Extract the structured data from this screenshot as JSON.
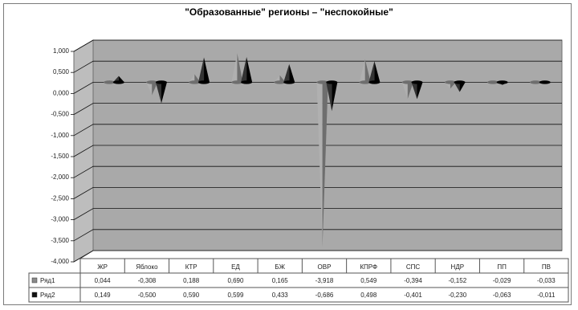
{
  "chart_data": {
    "type": "bar",
    "title": "\"Образованные\" регионы – \"неспокойные\"",
    "categories": [
      "ЖР",
      "Яблоко",
      "КТР",
      "ЕД",
      "БЖ",
      "ОВР",
      "КПРФ",
      "СПС",
      "НДР",
      "ПП",
      "ПВ"
    ],
    "series": [
      {
        "name": "Ряд1",
        "color": "#8a8a8a",
        "values": [
          0.044,
          -0.308,
          0.188,
          0.69,
          0.165,
          -3.918,
          0.549,
          -0.394,
          -0.152,
          -0.029,
          -0.033
        ],
        "labels": [
          "0,044",
          "-0,308",
          "0,188",
          "0,690",
          "0,165",
          "-3,918",
          "0,549",
          "-0,394",
          "-0,152",
          "-0,029",
          "-0,033"
        ]
      },
      {
        "name": "Ряд2",
        "color": "#111111",
        "values": [
          0.149,
          -0.5,
          0.59,
          0.599,
          0.433,
          -0.686,
          0.498,
          -0.401,
          -0.23,
          -0.063,
          -0.011
        ],
        "labels": [
          "0,149",
          "-0,500",
          "0,590",
          "0,599",
          "0,433",
          "-0,686",
          "0,498",
          "-0,401",
          "-0,230",
          "-0,063",
          "-0,011"
        ]
      }
    ],
    "ylim": [
      -4.0,
      1.0
    ],
    "yticks": [
      1.0,
      0.5,
      0.0,
      -0.5,
      -1.0,
      -1.5,
      -2.0,
      -2.5,
      -3.0,
      -3.5,
      -4.0
    ],
    "ytick_labels": [
      "1,000",
      "0,500",
      "0,000",
      "-0,500",
      "-1,000",
      "-1,500",
      "-2,000",
      "-2,500",
      "-3,000",
      "-3,500",
      "-4,000"
    ],
    "grid": true,
    "legend": "data-table-below",
    "wall_color": "#a9a9a9"
  }
}
